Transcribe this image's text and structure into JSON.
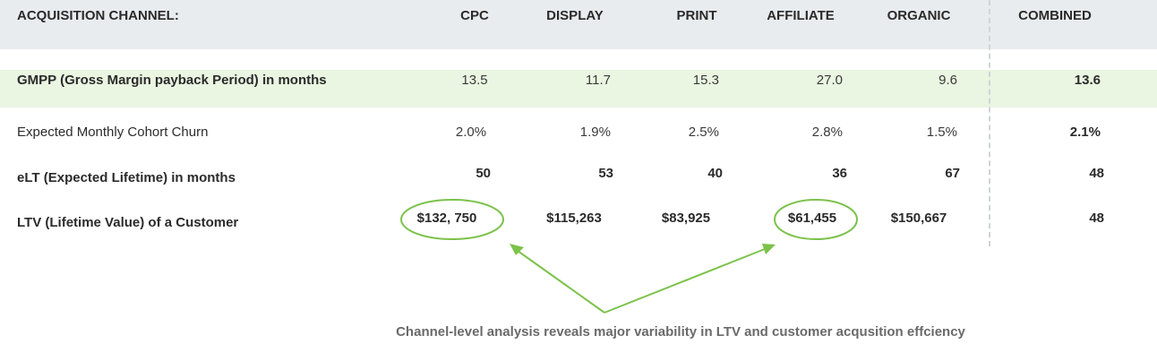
{
  "header": {
    "channel_label": "ACQUISITION CHANNEL:",
    "columns": [
      "CPC",
      "DISPLAY",
      "PRINT",
      "AFFILIATE",
      "ORGANIC",
      "COMBINED"
    ]
  },
  "rows": {
    "gmpp": {
      "label": "GMPP (Gross Margin payback Period) in months",
      "values": [
        "13.5",
        "11.7",
        "15.3",
        "27.0",
        "9.6",
        "13.6"
      ]
    },
    "churn": {
      "label": "Expected Monthly Cohort Churn",
      "values": [
        "2.0%",
        "1.9%",
        "2.5%",
        "2.8%",
        "1.5%",
        "2.1%"
      ]
    },
    "elt": {
      "label": "eLT (Expected Lifetime) in months",
      "values": [
        "50",
        "53",
        "40",
        "36",
        "67",
        "48"
      ]
    },
    "ltv": {
      "label": "LTV (Lifetime Value) of a Customer",
      "values": [
        "$132, 750",
        "$115,263",
        "$83,925",
        "$61,455",
        "$150,667",
        "48"
      ]
    }
  },
  "annotation": "Channel-level analysis reveals major variability in LTV and customer acqusition effciency",
  "colors": {
    "header_band": "#e9ecee",
    "highlight_band": "#eaf5e2",
    "accent_green": "#7cc24a"
  }
}
